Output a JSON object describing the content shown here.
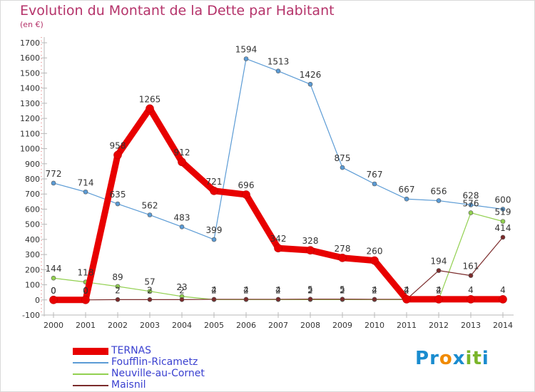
{
  "title": "Evolution du Montant de la Dette par Habitant",
  "unit": "(en €)",
  "logo": {
    "text": "Proxiti",
    "letters": [
      "P",
      "r",
      "o",
      "x",
      "i",
      "t",
      "i"
    ],
    "colors": [
      "#1a8ccf",
      "#1a8ccf",
      "#f08a00",
      "#1a8ccf",
      "#7ab52a",
      "#7ab52a",
      "#1a8ccf"
    ]
  },
  "chart_data": {
    "type": "line",
    "title": "Evolution du Montant de la Dette par Habitant",
    "ylabel": "(en €)",
    "ylim": [
      -100,
      1700
    ],
    "yticks": [
      "-100",
      "0",
      "100",
      "200",
      "300",
      "400",
      "500",
      "600",
      "700",
      "800",
      "900",
      "1000",
      "1100",
      "1200",
      "1300",
      "1400",
      "1500",
      "1600",
      "1700"
    ],
    "x": [
      "2000",
      "2001",
      "2002",
      "2003",
      "2004",
      "2005",
      "2006",
      "2007",
      "2008",
      "2009",
      "2010",
      "2011",
      "2012",
      "2013",
      "2014"
    ],
    "grid": false,
    "legend_position": "bottom-left",
    "series": [
      {
        "name": "TERNAS",
        "color": "#e80000",
        "values": [
          0,
          0,
          958,
          1265,
          912,
          721,
          696,
          342,
          328,
          278,
          260,
          4,
          4,
          4,
          4
        ],
        "labels": [
          "0",
          "0",
          "958",
          "1265",
          "912",
          "721",
          "696",
          "342",
          "328",
          "278",
          "260",
          "4",
          "4",
          "4",
          "4"
        ]
      },
      {
        "name": "Foufflin-Ricametz",
        "color": "#5b9bd5",
        "values": [
          772,
          714,
          635,
          562,
          483,
          399,
          1594,
          1513,
          1426,
          875,
          767,
          667,
          656,
          628,
          600
        ],
        "labels": [
          "772",
          "714",
          "635",
          "562",
          "483",
          "399",
          "1594",
          "1513",
          "1426",
          "875",
          "767",
          "667",
          "656",
          "628",
          "600"
        ]
      },
      {
        "name": "Neuville-au-Cornet",
        "color": "#92d050",
        "values": [
          144,
          118,
          89,
          57,
          23,
          2,
          2,
          2,
          2,
          2,
          2,
          2,
          2,
          576,
          519
        ],
        "labels": [
          "144",
          "118",
          "89",
          "57",
          "23",
          "2",
          "2",
          "2",
          "2",
          "2",
          "2",
          "2",
          "2",
          "576",
          "519"
        ]
      },
      {
        "name": "Maisnil",
        "color": "#7b2b2b",
        "values": [
          0,
          0,
          2,
          2,
          2,
          4,
          4,
          4,
          5,
          5,
          4,
          4,
          194,
          161,
          414
        ],
        "labels": [
          "0",
          "0",
          "2",
          "2",
          "2",
          "4",
          "4",
          "4",
          "5",
          "5",
          "4",
          "4",
          "194",
          "161",
          "414"
        ]
      }
    ]
  }
}
